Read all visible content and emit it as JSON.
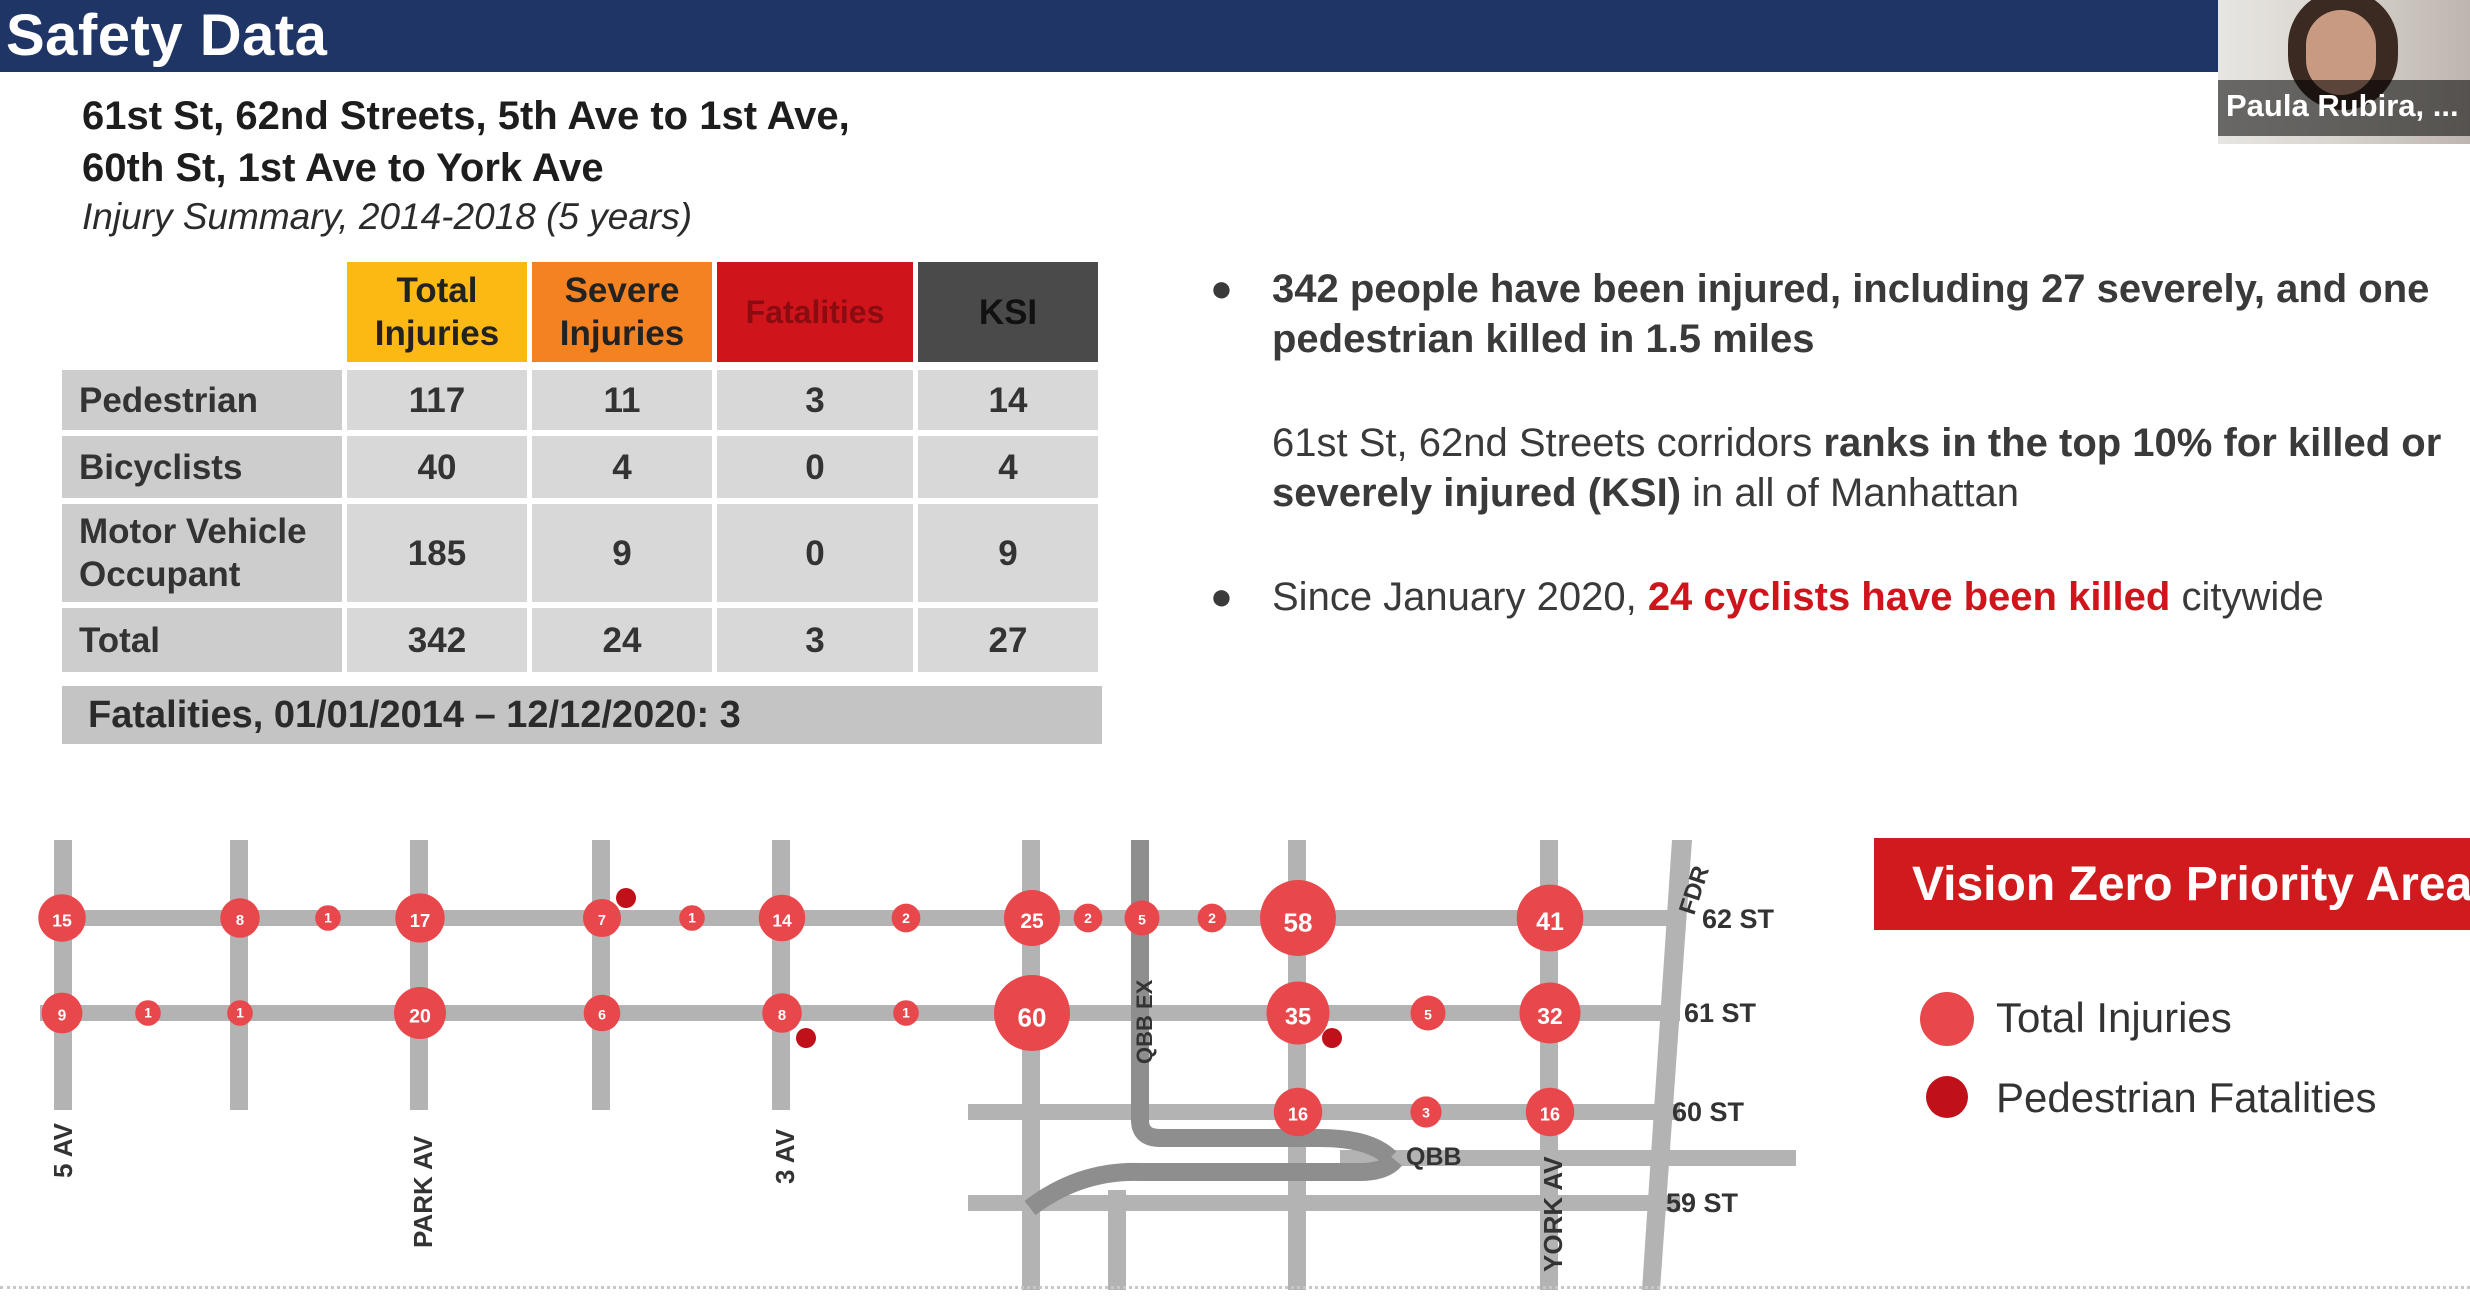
{
  "header": {
    "title": "Safety Data"
  },
  "video": {
    "participant_name": "Paula Rubira, ..."
  },
  "subtitle": {
    "line1": "61st St, 62nd Streets, 5th Ave to 1st Ave,",
    "line2": "60th St, 1st Ave to York Ave",
    "summary": "Injury Summary, 2014-2018 (5 years)"
  },
  "table": {
    "columns": [
      "Total Injuries",
      "Severe Injuries",
      "Fatalities",
      "KSI"
    ],
    "column_colors": [
      "#fdb913",
      "#f58220",
      "#d0141c",
      "#4a4a4a"
    ],
    "rows": [
      {
        "label": "Pedestrian",
        "values": [
          "117",
          "11",
          "3",
          "14"
        ]
      },
      {
        "label": "Bicyclists",
        "values": [
          "40",
          "4",
          "0",
          "4"
        ]
      },
      {
        "label": "Motor Vehicle Occupant",
        "values": [
          "185",
          "9",
          "0",
          "9"
        ]
      },
      {
        "label": "Total",
        "values": [
          "342",
          "24",
          "3",
          "27"
        ]
      }
    ],
    "fatalities_note": "Fatalities, 01/01/2014 – 12/12/2020: 3"
  },
  "bullets": {
    "b1": "342 people have been injured, including 27 severely, and one pedestrian killed in 1.5 miles",
    "b2_a": "61st St, 62nd Streets corridors ",
    "b2_b": "ranks in the top 10% for killed or severely injured (KSI)",
    "b2_c": " in all of Manhattan",
    "b3_a": "Since January 2020, ",
    "b3_b": "24 cyclists have been killed",
    "b3_c": " citywide"
  },
  "legend": {
    "title": "Vision Zero Priority Area",
    "total_injuries": "Total Injuries",
    "pedestrian_fatalities": "Pedestrian Fatalities"
  },
  "colors": {
    "injury": "#e8484c",
    "fatality": "#c0101a",
    "street": "#b3b3b3",
    "header": "#1f3566"
  },
  "map": {
    "street_labels": {
      "st62": "62 ST",
      "st61": "61 ST",
      "st60": "60 ST",
      "st59": "59 ST",
      "av5": "5 AV",
      "park": "PARK AV",
      "av3": "3 AV",
      "york": "YORK AV",
      "fdr": "FDR",
      "qbbex": "QBB EX",
      "qbb": "QBB"
    },
    "st62_counts": [
      "15",
      "8",
      "1",
      "17",
      "7",
      "1",
      "14",
      "2",
      "25",
      "2",
      "5",
      "2",
      "58",
      "41"
    ],
    "st61_counts": [
      "9",
      "1",
      "1",
      "20",
      "6",
      "8",
      "1",
      "60",
      "35",
      "5",
      "32"
    ],
    "st60_counts": [
      "16",
      "3",
      "16"
    ]
  }
}
